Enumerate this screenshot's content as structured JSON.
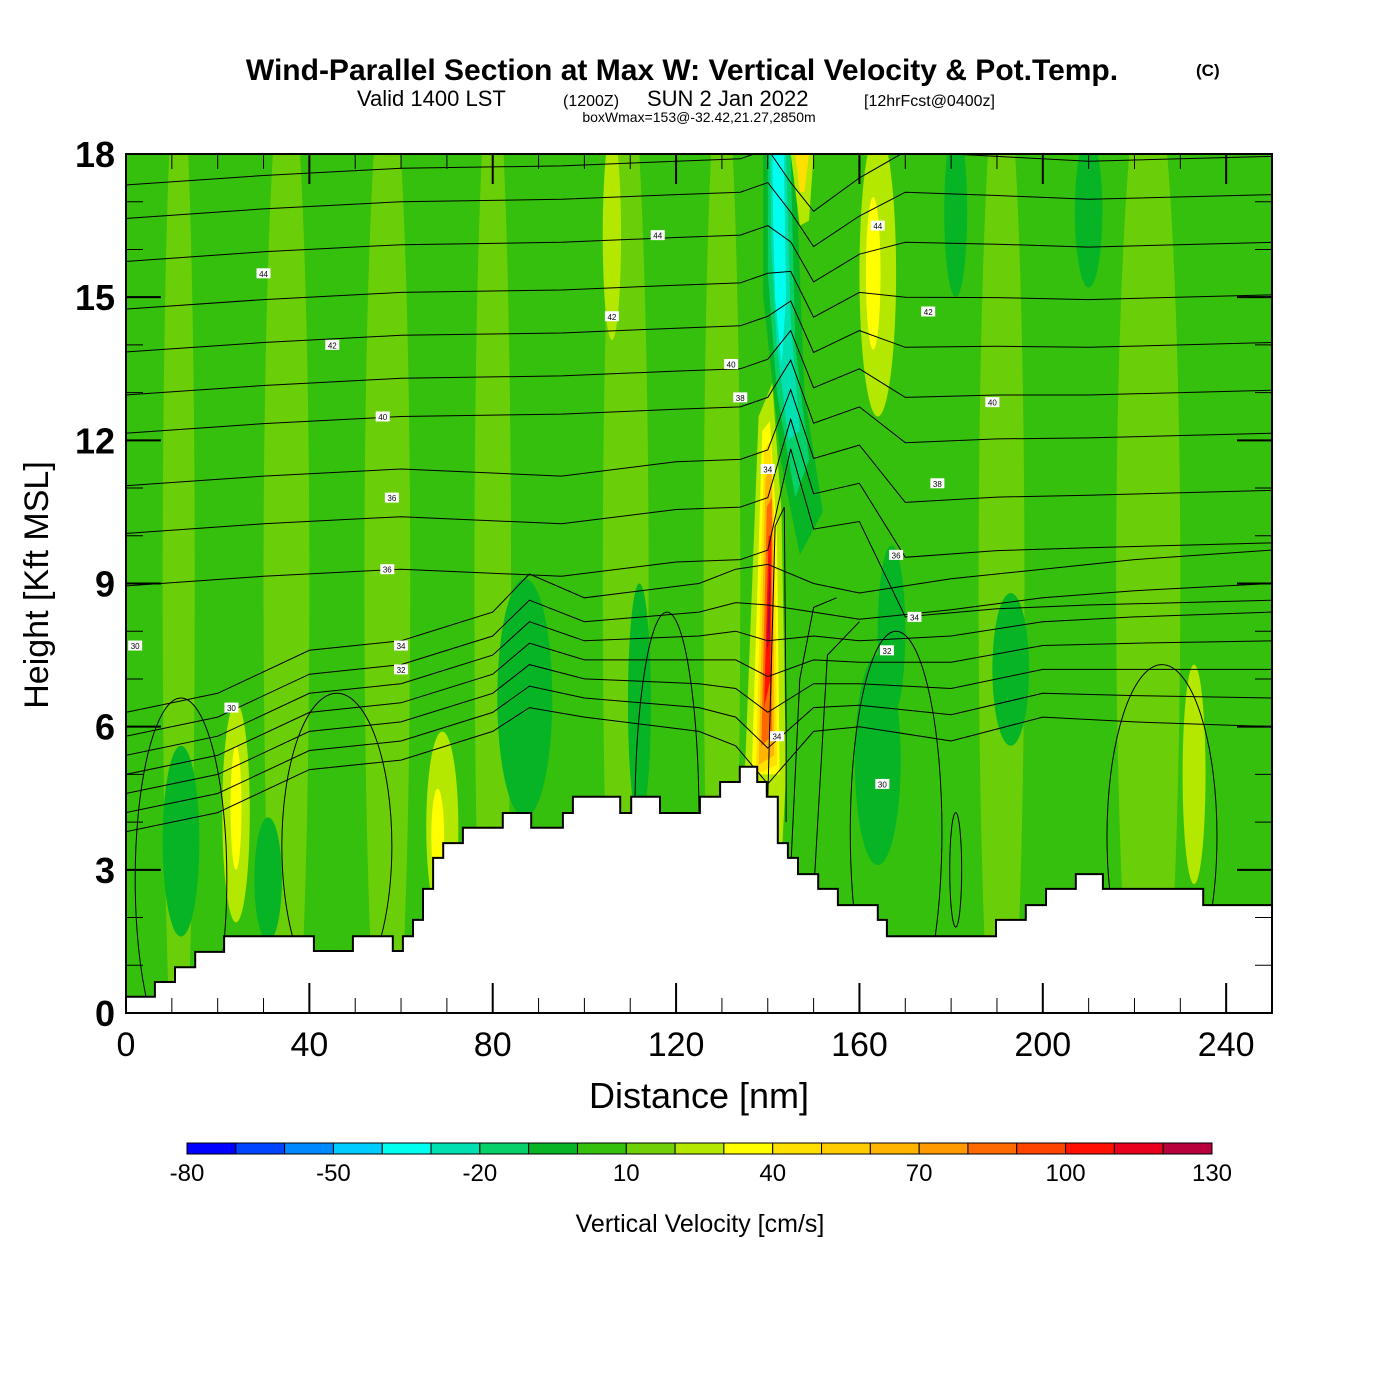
{
  "chart_data": {
    "type": "heatmap",
    "subtype": "filled-contour cross-section with isentropes",
    "title": "Wind-Parallel Section at Max W: Vertical Velocity & Pot.Temp.",
    "title_mark": "(C)",
    "subtitle_parts": [
      "Valid 1400 LST",
      "(1200Z)",
      "SUN 2 Jan 2022",
      "[12hrFcst@0400z]"
    ],
    "subtitle2": "boxWmax=153@-32.42,21.27,2850m",
    "xlabel": "Distance [nm]",
    "ylabel": "Height [Kft MSL]",
    "xlim": [
      0,
      250
    ],
    "ylim": [
      0,
      18
    ],
    "xticks": [
      0,
      40,
      80,
      120,
      160,
      200,
      240
    ],
    "xtick_labels": [
      "0",
      "40",
      "80",
      "120",
      "160",
      "200",
      "240"
    ],
    "x_minor_step": 10,
    "yticks": [
      0,
      3,
      6,
      9,
      12,
      15,
      18
    ],
    "ytick_labels": [
      "0",
      "3",
      "6",
      "9",
      "12",
      "15",
      "18"
    ],
    "y_minor_step": 1,
    "colorbar": {
      "label": "Vertical Velocity [cm/s]",
      "min": -80,
      "max": 130,
      "step": 10,
      "tick_values": [
        -80,
        -50,
        -20,
        10,
        40,
        70,
        100,
        130
      ],
      "tick_labels": [
        "-80",
        "-50",
        "-20",
        "10",
        "40",
        "70",
        "100",
        "130"
      ],
      "colors": [
        "#0000ff",
        "#0044ff",
        "#0088ff",
        "#00ccff",
        "#00ffee",
        "#00e0b0",
        "#06d06a",
        "#06b426",
        "#34c00c",
        "#70d008",
        "#b4e800",
        "#ffff00",
        "#ffe000",
        "#ffcc00",
        "#ffb400",
        "#ff9a00",
        "#ff6a00",
        "#ff4400",
        "#ff1000",
        "#e8001c",
        "#b8003c"
      ]
    },
    "background_w": 0,
    "w_features": [
      {
        "name": "updraft-core",
        "x": 139.5,
        "y": 9.2,
        "w": 100
      },
      {
        "name": "updraft-upper",
        "x": 141,
        "y": 12.0,
        "w": 40
      },
      {
        "name": "downdraft-tilted",
        "x": 145,
        "y": 13.5,
        "w": -40
      },
      {
        "name": "downdraft-top",
        "x": 141,
        "y": 17.0,
        "w": -40
      },
      {
        "name": "updraft-top",
        "x": 147,
        "y": 17.8,
        "w": 40
      },
      {
        "name": "updraft-lee-upper",
        "x": 164,
        "y": 15.5,
        "w": 20
      },
      {
        "name": "downdraft-lee",
        "x": 164,
        "y": 6.0,
        "w": -10
      },
      {
        "name": "downdraft-lee2",
        "x": 193,
        "y": 7.0,
        "w": -10
      },
      {
        "name": "downdraft-windward",
        "x": 87,
        "y": 8.5,
        "w": -10
      },
      {
        "name": "updraft-slope",
        "x": 68,
        "y": 4.2,
        "w": 30
      },
      {
        "name": "updraft-left",
        "x": 24,
        "y": 4.2,
        "w": 20
      },
      {
        "name": "downdraft-left",
        "x": 12,
        "y": 3.8,
        "w": -10
      }
    ],
    "isentropes": {
      "units": "C-equivalent potential temperature labels",
      "label_values": [
        "44",
        "44",
        "42",
        "42",
        "40",
        "40",
        "38",
        "36",
        "36",
        "30",
        "34",
        "34",
        "32",
        "30",
        "44",
        "42",
        "40",
        "38",
        "36",
        "34",
        "32",
        "30",
        "34"
      ],
      "levels": [
        30,
        31,
        32,
        33,
        34,
        35,
        36,
        37,
        38,
        39,
        40,
        41,
        42,
        43,
        44,
        45,
        46
      ]
    },
    "terrain": {
      "x": [
        0,
        6.3,
        10.7,
        15.1,
        21.4,
        41.0,
        49.5,
        58.2,
        60.4,
        62.6,
        64.8,
        67.0,
        69.2,
        73.5,
        82.2,
        88.4,
        95.3,
        97.5,
        107.8,
        110.2,
        116.5,
        125.2,
        129.6,
        133.9,
        137.7,
        139.8,
        142.2,
        144.4,
        146.6,
        151.0,
        155.3,
        164.0,
        166.0,
        189.8,
        196.3,
        200.7,
        207.2,
        213.1,
        235.0,
        250
      ],
      "h": [
        0.34,
        0.65,
        0.96,
        1.28,
        1.61,
        1.3,
        1.61,
        1.3,
        1.61,
        1.95,
        2.6,
        3.25,
        3.56,
        3.88,
        4.19,
        3.88,
        4.19,
        4.53,
        4.19,
        4.53,
        4.19,
        4.53,
        4.84,
        5.16,
        4.84,
        4.53,
        3.56,
        3.25,
        2.91,
        2.6,
        2.26,
        1.95,
        1.61,
        1.95,
        2.26,
        2.6,
        2.91,
        2.6,
        2.26,
        2.26
      ]
    }
  }
}
